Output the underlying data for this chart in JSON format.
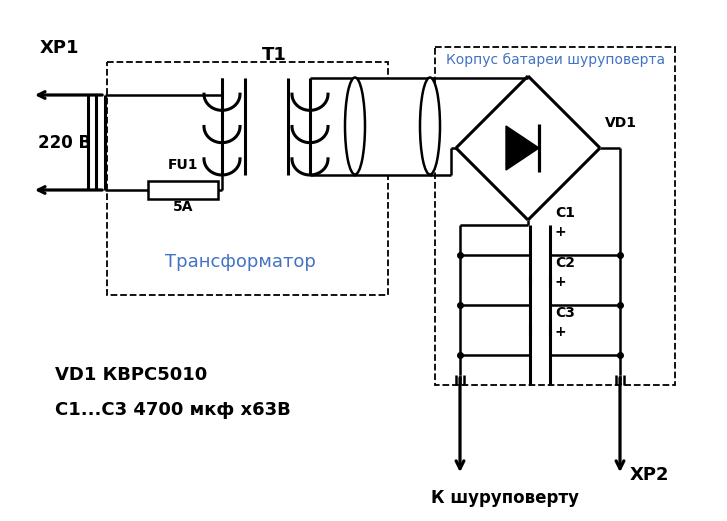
{
  "bg_color": "#ffffff",
  "line_color": "#000000",
  "text_color": "#000000",
  "blue_color": "#4472c4",
  "lw": 1.8,
  "lw_thick": 2.2,
  "fig_w": 7.27,
  "fig_h": 5.21,
  "dpi": 100,
  "xp1_label": "ХР1",
  "t1_label": "Т1",
  "v220_label": "220 В",
  "fu1_label": "FU1",
  "fu1_val": "5А",
  "trans_label": "Трансформатор",
  "vd1_label": "VD1",
  "c1_label": "C1",
  "c2_label": "C2",
  "c3_label": "C3",
  "plus": "+",
  "korpus_label": "Корпус батареи шуруповерта",
  "vd1_spec": "VD1 КВРС5010",
  "c_spec": "С1...С3 4700 мкф х63В",
  "xp2_label": "ХР2",
  "k_label": "К шуруповерту"
}
